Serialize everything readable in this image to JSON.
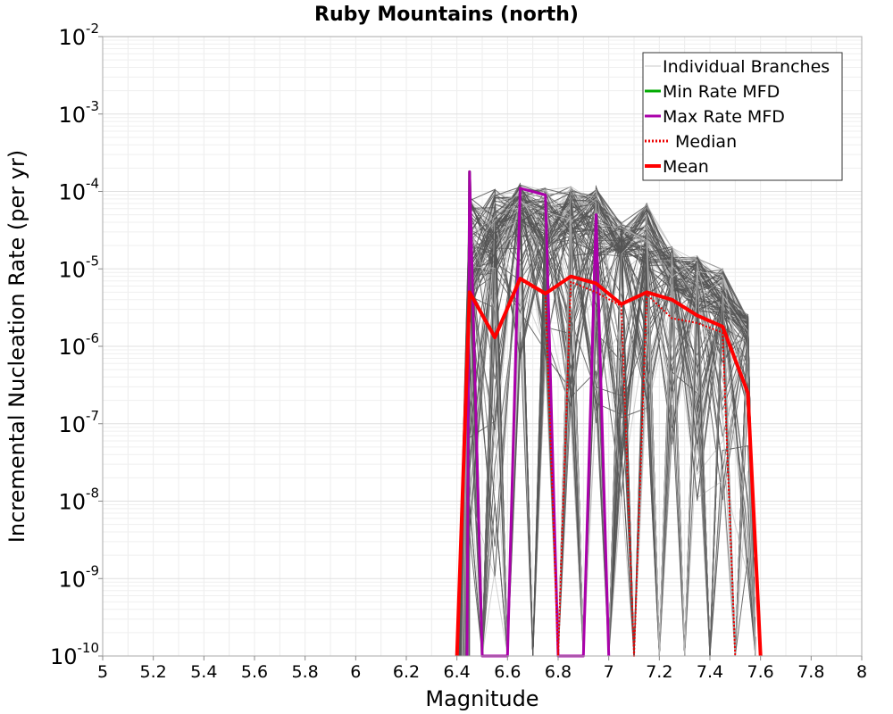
{
  "chart_data": {
    "type": "line",
    "title": "Ruby Mountains (north)",
    "xlabel": "Magnitude",
    "ylabel": "Incremental Nucleation Rate (per yr)",
    "xlim": [
      5,
      8
    ],
    "ylim": [
      1e-10,
      0.01
    ],
    "yscale": "log",
    "grid": true,
    "legend_position": "top-right",
    "x_ticks": [
      "5",
      "5.2",
      "5.4",
      "5.6",
      "5.8",
      "6",
      "6.2",
      "6.4",
      "6.6",
      "6.8",
      "7",
      "7.2",
      "7.4",
      "7.6",
      "7.8",
      "8"
    ],
    "y_ticks": [
      {
        "base": "10",
        "exp": "-2"
      },
      {
        "base": "10",
        "exp": "-3"
      },
      {
        "base": "10",
        "exp": "-4"
      },
      {
        "base": "10",
        "exp": "-5"
      },
      {
        "base": "10",
        "exp": "-6"
      },
      {
        "base": "10",
        "exp": "-7"
      },
      {
        "base": "10",
        "exp": "-8"
      },
      {
        "base": "10",
        "exp": "-9"
      },
      {
        "base": "10",
        "exp": "-10"
      }
    ],
    "legend": [
      {
        "label": "Individual Branches",
        "color": "#c8c8c8",
        "style": "solid"
      },
      {
        "label": "Min Rate MFD",
        "color": "#00aa00",
        "style": "solid"
      },
      {
        "label": "Max Rate MFD",
        "color": "#aa00aa",
        "style": "solid"
      },
      {
        "label": "Median",
        "color": "#ee0000",
        "style": "dotted"
      },
      {
        "label": "Mean",
        "color": "#ff0000",
        "style": "solid"
      }
    ],
    "series": [
      {
        "name": "Mean",
        "color": "#ff0000",
        "x": [
          6.4,
          6.45,
          6.55,
          6.65,
          6.75,
          6.85,
          6.95,
          7.05,
          7.15,
          7.25,
          7.35,
          7.45,
          7.55,
          7.6
        ],
        "y": [
          1e-10,
          5e-06,
          1.3e-06,
          7.5e-06,
          4.8e-06,
          8e-06,
          6.5e-06,
          3.5e-06,
          5e-06,
          4e-06,
          2.5e-06,
          1.8e-06,
          2.5e-07,
          1e-10
        ]
      },
      {
        "name": "Median",
        "color": "#ee0000",
        "x": [
          6.4,
          6.45,
          6.55,
          6.65,
          6.75,
          6.8,
          6.85,
          6.95,
          7.05,
          7.1,
          7.15,
          7.25,
          7.35,
          7.45,
          7.5
        ],
        "y": [
          1e-10,
          5e-06,
          1.3e-06,
          7.2e-06,
          4.6e-06,
          1e-10,
          6.8e-06,
          5e-06,
          3.3e-06,
          1e-10,
          4.7e-06,
          2.3e-06,
          2e-06,
          1.5e-06,
          1e-10
        ]
      },
      {
        "name": "Max Rate MFD",
        "color": "#aa00aa",
        "x": [
          6.44,
          6.45,
          6.5,
          6.6,
          6.65,
          6.75,
          6.8,
          6.85,
          6.9,
          6.95,
          7.0
        ],
        "y": [
          1e-10,
          0.00018,
          1e-10,
          1e-10,
          0.00011,
          9e-05,
          1e-10,
          1e-10,
          1e-10,
          5e-05,
          1e-10
        ]
      },
      {
        "name": "Min Rate MFD",
        "color": "#00aa00",
        "x": [
          6.44,
          6.45,
          6.5
        ],
        "y": [
          1e-10,
          0.00018,
          1e-10
        ]
      }
    ],
    "branch_envelope": {
      "name": "Individual Branches",
      "color": "#555555",
      "x": [
        6.45,
        6.55,
        6.65,
        6.75,
        6.85,
        6.95,
        7.05,
        7.15,
        7.25,
        7.35,
        7.45,
        7.55
      ],
      "y_max": [
        0.00016,
        0.00017,
        0.00016,
        0.00016,
        0.00016,
        0.00018,
        5e-05,
        0.0001,
        2.5e-05,
        2e-05,
        1.3e-05,
        3e-06
      ],
      "y_mid": [
        1e-05,
        2e-05,
        6e-05,
        3e-05,
        4e-05,
        3e-05,
        2e-05,
        2e-05,
        8e-06,
        5e-06,
        4e-06,
        1.5e-06
      ],
      "y_min": [
        1e-09,
        1e-09,
        5e-07,
        5e-07,
        1e-07,
        1e-07,
        1e-08,
        1e-07,
        5e-08,
        1e-08,
        1e-08,
        1e-09
      ]
    }
  }
}
